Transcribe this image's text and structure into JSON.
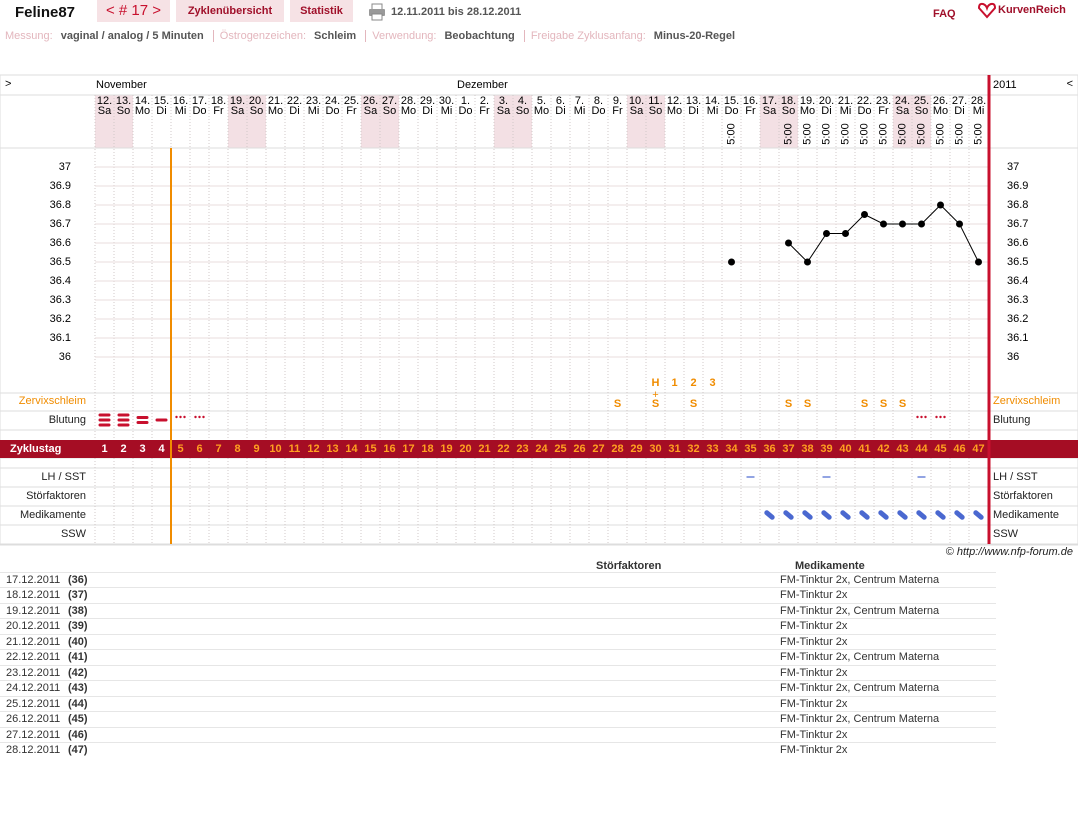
{
  "header": {
    "user": "Feline87",
    "cycle_nav": "< # 17 >",
    "tabs": [
      "Zyklenübersicht",
      "Statistik"
    ],
    "date_range": "12.11.2011 bis 28.12.2011",
    "faq": "FAQ",
    "logo": "KurvenReich"
  },
  "info": [
    {
      "label": "Messung:",
      "value": "vaginal / analog / 5 Minuten"
    },
    {
      "label": "Östrogenzeichen:",
      "value": "Schleim"
    },
    {
      "label": "Verwendung:",
      "value": "Beobachtung"
    },
    {
      "label": "Freigabe Zyklusanfang:",
      "value": "Minus-20-Regel"
    }
  ],
  "chart_data": {
    "type": "line",
    "nav_left": ">",
    "nav_right": "<",
    "year": "2011",
    "months": [
      {
        "name": "November",
        "start_day": 1
      },
      {
        "name": "Dezember",
        "start_day": 20
      }
    ],
    "days": [
      {
        "d": "12.",
        "w": "Sa",
        "we": true
      },
      {
        "d": "13.",
        "w": "So",
        "we": true
      },
      {
        "d": "14.",
        "w": "Mo"
      },
      {
        "d": "15.",
        "w": "Di"
      },
      {
        "d": "16.",
        "w": "Mi"
      },
      {
        "d": "17.",
        "w": "Do"
      },
      {
        "d": "18.",
        "w": "Fr"
      },
      {
        "d": "19.",
        "w": "Sa",
        "we": true
      },
      {
        "d": "20.",
        "w": "So",
        "we": true
      },
      {
        "d": "21.",
        "w": "Mo"
      },
      {
        "d": "22.",
        "w": "Di"
      },
      {
        "d": "23.",
        "w": "Mi"
      },
      {
        "d": "24.",
        "w": "Do"
      },
      {
        "d": "25.",
        "w": "Fr"
      },
      {
        "d": "26.",
        "w": "Sa",
        "we": true
      },
      {
        "d": "27.",
        "w": "So",
        "we": true
      },
      {
        "d": "28.",
        "w": "Mo"
      },
      {
        "d": "29.",
        "w": "Di"
      },
      {
        "d": "30.",
        "w": "Mi"
      },
      {
        "d": "1.",
        "w": "Do"
      },
      {
        "d": "2.",
        "w": "Fr"
      },
      {
        "d": "3.",
        "w": "Sa",
        "we": true
      },
      {
        "d": "4.",
        "w": "So",
        "we": true
      },
      {
        "d": "5.",
        "w": "Mo"
      },
      {
        "d": "6.",
        "w": "Di"
      },
      {
        "d": "7.",
        "w": "Mi"
      },
      {
        "d": "8.",
        "w": "Do"
      },
      {
        "d": "9.",
        "w": "Fr"
      },
      {
        "d": "10.",
        "w": "Sa",
        "we": true
      },
      {
        "d": "11.",
        "w": "So",
        "we": true
      },
      {
        "d": "12.",
        "w": "Mo"
      },
      {
        "d": "13.",
        "w": "Di"
      },
      {
        "d": "14.",
        "w": "Mi"
      },
      {
        "d": "15.",
        "w": "Do",
        "t": "5:00"
      },
      {
        "d": "16.",
        "w": "Fr"
      },
      {
        "d": "17.",
        "w": "Sa",
        "we": true
      },
      {
        "d": "18.",
        "w": "So",
        "we": true,
        "t": "5:00"
      },
      {
        "d": "19.",
        "w": "Mo",
        "t": "5:00"
      },
      {
        "d": "20.",
        "w": "Di",
        "t": "5:00"
      },
      {
        "d": "21.",
        "w": "Mi",
        "t": "5:00"
      },
      {
        "d": "22.",
        "w": "Do",
        "t": "5:00"
      },
      {
        "d": "23.",
        "w": "Fr",
        "t": "5:00"
      },
      {
        "d": "24.",
        "w": "Sa",
        "we": true,
        "t": "5:00"
      },
      {
        "d": "25.",
        "w": "So",
        "we": true,
        "t": "5:00"
      },
      {
        "d": "26.",
        "w": "Mo",
        "t": "5:00"
      },
      {
        "d": "27.",
        "w": "Di",
        "t": "5:00"
      },
      {
        "d": "28.",
        "w": "Mi",
        "t": "5:00"
      }
    ],
    "x": [
      1,
      2,
      3,
      4,
      5,
      6,
      7,
      8,
      9,
      10,
      11,
      12,
      13,
      14,
      15,
      16,
      17,
      18,
      19,
      20,
      21,
      22,
      23,
      24,
      25,
      26,
      27,
      28,
      29,
      30,
      31,
      32,
      33,
      34,
      35,
      36,
      37,
      38,
      39,
      40,
      41,
      42,
      43,
      44,
      45,
      46,
      47
    ],
    "values": [
      null,
      null,
      null,
      null,
      null,
      null,
      null,
      null,
      null,
      null,
      null,
      null,
      null,
      null,
      null,
      null,
      null,
      null,
      null,
      null,
      null,
      null,
      null,
      null,
      null,
      null,
      null,
      null,
      null,
      null,
      null,
      null,
      null,
      36.5,
      null,
      null,
      36.6,
      36.5,
      36.65,
      36.65,
      36.75,
      36.7,
      36.7,
      36.7,
      36.8,
      36.7,
      36.5
    ],
    "color": "#000000",
    "ylim": [
      35.9,
      37.1
    ],
    "yticks": [
      36,
      36.1,
      36.2,
      36.3,
      36.4,
      36.5,
      36.6,
      36.7,
      36.8,
      36.9,
      37
    ],
    "grid": true,
    "release_day": 4,
    "rows": {
      "peak": [
        {
          "day": 30,
          "text": "H"
        },
        {
          "day": 31,
          "text": "1"
        },
        {
          "day": 32,
          "text": "2"
        },
        {
          "day": 33,
          "text": "3"
        }
      ],
      "peak_sign": {
        "day": 30,
        "text": "+"
      },
      "cervix": {
        "label": "Zervixschleim",
        "marks": [
          {
            "day": 28,
            "text": "S"
          },
          {
            "day": 30,
            "text": "S"
          },
          {
            "day": 32,
            "text": "S"
          },
          {
            "day": 37,
            "text": "S"
          },
          {
            "day": 38,
            "text": "S"
          },
          {
            "day": 41,
            "text": "S"
          },
          {
            "day": 42,
            "text": "S"
          },
          {
            "day": 43,
            "text": "S"
          }
        ]
      },
      "bleeding": {
        "label": "Blutung",
        "marks": [
          {
            "day": 1,
            "level": 3
          },
          {
            "day": 2,
            "level": 3
          },
          {
            "day": 3,
            "level": 2
          },
          {
            "day": 4,
            "level": 1
          },
          {
            "day": 5,
            "level": 0
          },
          {
            "day": 6,
            "level": 0
          },
          {
            "day": 44,
            "level": 0
          },
          {
            "day": 45,
            "level": 0
          }
        ]
      },
      "cycle_day": {
        "label": "Zyklustag"
      },
      "lh": {
        "label": "LH / SST",
        "days": [
          35,
          39,
          44
        ]
      },
      "stoer": {
        "label": "Störfaktoren"
      },
      "med": {
        "label": "Medikamente",
        "days": [
          36,
          37,
          38,
          39,
          40,
          41,
          42,
          43,
          44,
          45,
          46,
          47
        ]
      },
      "ssw": {
        "label": "SSW"
      }
    }
  },
  "copyright": "© http://www.nfp-forum.de",
  "table": {
    "headers": [
      "Störfaktoren",
      "Medikamente"
    ],
    "rows": [
      [
        "17.12.2011",
        "(36)",
        "FM-Tinktur 2x, Centrum Materna"
      ],
      [
        "18.12.2011",
        "(37)",
        "FM-Tinktur 2x"
      ],
      [
        "19.12.2011",
        "(38)",
        "FM-Tinktur 2x, Centrum Materna"
      ],
      [
        "20.12.2011",
        "(39)",
        "FM-Tinktur 2x"
      ],
      [
        "21.12.2011",
        "(40)",
        "FM-Tinktur 2x"
      ],
      [
        "22.12.2011",
        "(41)",
        "FM-Tinktur 2x, Centrum Materna"
      ],
      [
        "23.12.2011",
        "(42)",
        "FM-Tinktur 2x"
      ],
      [
        "24.12.2011",
        "(43)",
        "FM-Tinktur 2x, Centrum Materna"
      ],
      [
        "25.12.2011",
        "(44)",
        "FM-Tinktur 2x"
      ],
      [
        "26.12.2011",
        "(45)",
        "FM-Tinktur 2x, Centrum Materna"
      ],
      [
        "27.12.2011",
        "(46)",
        "FM-Tinktur 2x"
      ],
      [
        "28.12.2011",
        "(47)",
        "FM-Tinktur 2x"
      ]
    ]
  }
}
